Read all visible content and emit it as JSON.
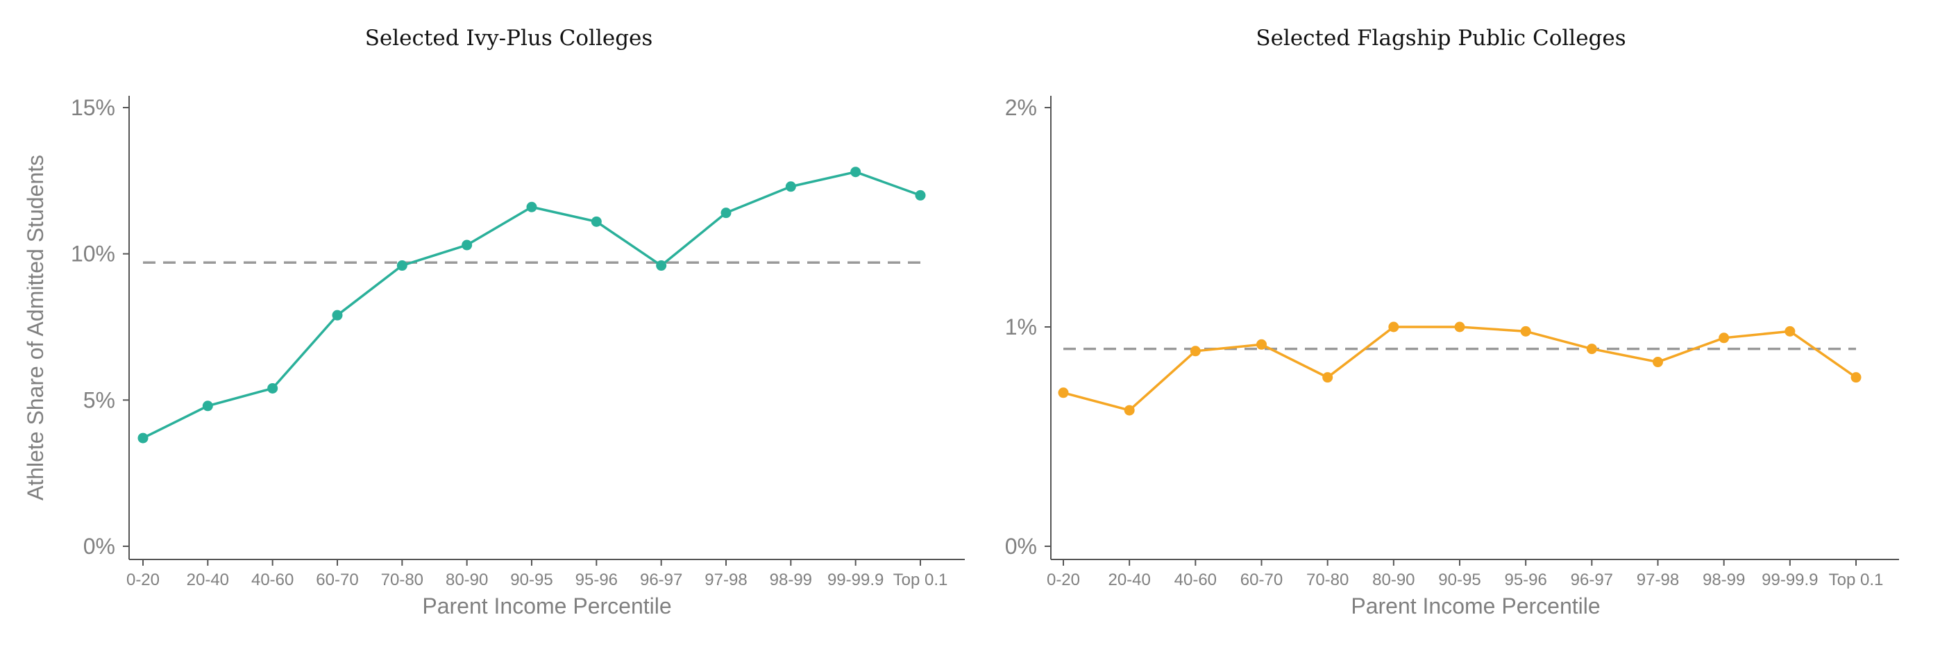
{
  "chart_data": [
    {
      "type": "line",
      "title": "Selected Ivy-Plus Colleges",
      "xlabel": "Parent Income Percentile",
      "ylabel": "Athlete Share of Admitted Students",
      "categories": [
        "0-20",
        "20-40",
        "40-60",
        "60-70",
        "70-80",
        "80-90",
        "90-95",
        "95-96",
        "96-97",
        "97-98",
        "98-99",
        "99-99.9",
        "Top 0.1"
      ],
      "series": [
        {
          "values": [
            3.7,
            4.8,
            5.4,
            7.9,
            9.6,
            10.3,
            11.6,
            11.1,
            9.6,
            11.4,
            12.3,
            12.8,
            12.0
          ],
          "color": "#2ab09a"
        }
      ],
      "reference_line": {
        "value": 9.7,
        "style": "dashed",
        "color": "#999999"
      },
      "ylim": [
        0,
        15
      ],
      "yticks": [
        0,
        5,
        10,
        15
      ],
      "ytick_labels": [
        "0%",
        "5%",
        "10%",
        "15%"
      ],
      "grid": false,
      "legend": "none"
    },
    {
      "type": "line",
      "title": "Selected Flagship Public Colleges",
      "xlabel": "Parent Income Percentile",
      "ylabel": "",
      "categories": [
        "0-20",
        "20-40",
        "40-60",
        "60-70",
        "70-80",
        "80-90",
        "90-95",
        "95-96",
        "96-97",
        "97-98",
        "98-99",
        "99-99.9",
        "Top 0.1"
      ],
      "series": [
        {
          "values": [
            0.7,
            0.62,
            0.89,
            0.92,
            0.77,
            1.0,
            1.0,
            0.98,
            0.9,
            0.84,
            0.95,
            0.98,
            0.77
          ],
          "color": "#f5a623"
        }
      ],
      "reference_line": {
        "value": 0.9,
        "style": "dashed",
        "color": "#999999"
      },
      "ylim": [
        0,
        2
      ],
      "yticks": [
        0,
        1,
        2
      ],
      "ytick_labels": [
        "0%",
        "1%",
        "2%"
      ],
      "grid": false,
      "legend": "none"
    }
  ]
}
